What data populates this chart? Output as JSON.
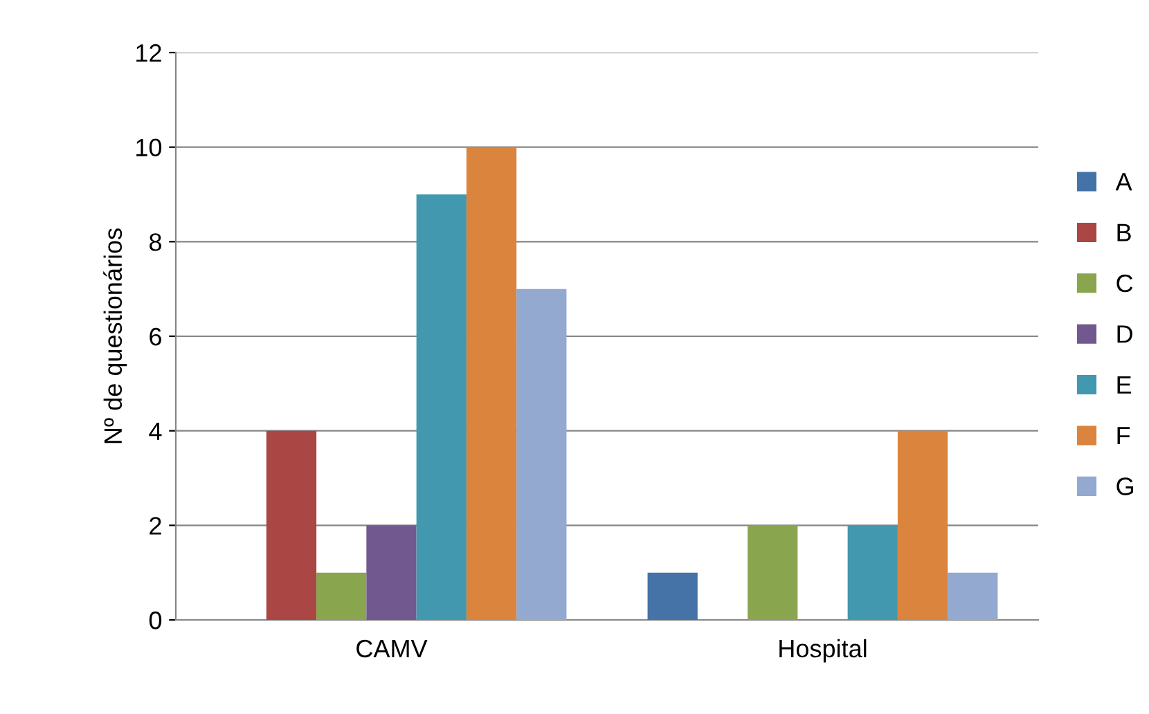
{
  "chart_data": {
    "type": "bar",
    "ylabel": "Nº de questionários",
    "categories": [
      "CAMV",
      "Hospital"
    ],
    "series": [
      {
        "name": "A",
        "color": "#4572a7",
        "values": [
          0,
          1
        ]
      },
      {
        "name": "B",
        "color": "#aa4643",
        "values": [
          4,
          0
        ]
      },
      {
        "name": "C",
        "color": "#89a54e",
        "values": [
          1,
          2
        ]
      },
      {
        "name": "D",
        "color": "#71588f",
        "values": [
          2,
          0
        ]
      },
      {
        "name": "E",
        "color": "#4198af",
        "values": [
          9,
          2
        ]
      },
      {
        "name": "F",
        "color": "#db843d",
        "values": [
          10,
          4
        ]
      },
      {
        "name": "G",
        "color": "#93a9cf",
        "values": [
          7,
          1
        ]
      }
    ],
    "ylim": [
      0,
      12
    ],
    "yticks": [
      0,
      2,
      4,
      6,
      8,
      10,
      12
    ],
    "grid": "y",
    "legend": "right"
  }
}
